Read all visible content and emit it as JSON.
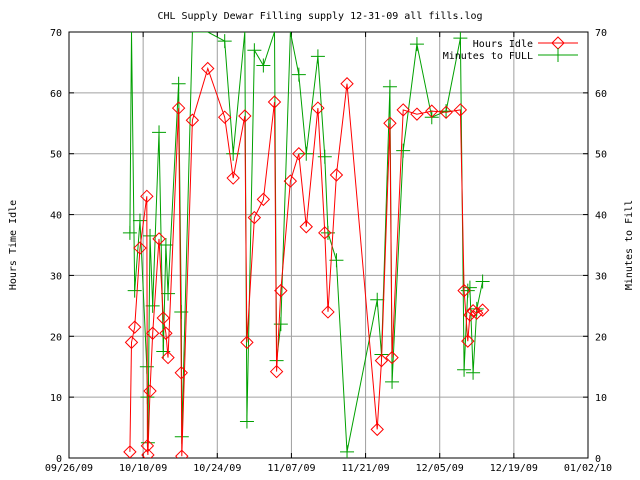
{
  "chart_data": {
    "type": "line",
    "title": "CHL Supply Dewar Filling supply 12-31-09 all fills.log",
    "ylabel_left": "Hours Time Idle",
    "ylabel_right": "Minutes to Fill",
    "x_ticks": [
      "09/26/09",
      "10/10/09",
      "10/24/09",
      "11/07/09",
      "11/21/09",
      "12/05/09",
      "12/19/09",
      "01/02/10"
    ],
    "y_ticks": [
      "0",
      "10",
      "20",
      "30",
      "40",
      "50",
      "60",
      "70"
    ],
    "ylim": [
      0,
      70
    ],
    "x_range_days": [
      0,
      98
    ],
    "grid": true,
    "legend_position": "top-right",
    "colors": {
      "hours": "#ff0000",
      "minutes": "#00a000",
      "grid": "#a0a0a0",
      "axis": "#000000"
    },
    "series": [
      {
        "name": "Hours Idle",
        "marker": "diamond",
        "points": [
          {
            "x": 11.5,
            "y": 1
          },
          {
            "x": 11.8,
            "y": 19
          },
          {
            "x": 12.4,
            "y": 21.5
          },
          {
            "x": 13.4,
            "y": 34.5
          },
          {
            "x": 14.7,
            "y": 43
          },
          {
            "x": 14.8,
            "y": 2
          },
          {
            "x": 14.9,
            "y": 0.5
          },
          {
            "x": 15.3,
            "y": 11
          },
          {
            "x": 15.8,
            "y": 20.5
          },
          {
            "x": 17.0,
            "y": 36
          },
          {
            "x": 17.8,
            "y": 23
          },
          {
            "x": 18.3,
            "y": 20.5
          },
          {
            "x": 18.7,
            "y": 16.5
          },
          {
            "x": 20.7,
            "y": 57.5
          },
          {
            "x": 21.2,
            "y": 14
          },
          {
            "x": 21.3,
            "y": 0.3
          },
          {
            "x": 23.3,
            "y": 55.5
          },
          {
            "x": 26.2,
            "y": 64
          },
          {
            "x": 29.4,
            "y": 56
          },
          {
            "x": 31.0,
            "y": 46
          },
          {
            "x": 33.2,
            "y": 56.2
          },
          {
            "x": 33.6,
            "y": 19
          },
          {
            "x": 35.0,
            "y": 39.5
          },
          {
            "x": 36.7,
            "y": 42.5
          },
          {
            "x": 38.8,
            "y": 58.5
          },
          {
            "x": 39.2,
            "y": 14.2
          },
          {
            "x": 40.0,
            "y": 27.5
          },
          {
            "x": 41.8,
            "y": 45.5
          },
          {
            "x": 43.4,
            "y": 50
          },
          {
            "x": 44.8,
            "y": 38
          },
          {
            "x": 47.0,
            "y": 57.5
          },
          {
            "x": 48.3,
            "y": 37
          },
          {
            "x": 48.9,
            "y": 24
          },
          {
            "x": 50.5,
            "y": 46.5
          },
          {
            "x": 52.5,
            "y": 61.5
          },
          {
            "x": 58.2,
            "y": 4.7
          },
          {
            "x": 59.0,
            "y": 16
          },
          {
            "x": 60.6,
            "y": 55
          },
          {
            "x": 61.0,
            "y": 16.5
          },
          {
            "x": 63.1,
            "y": 57.2
          },
          {
            "x": 65.7,
            "y": 56.5
          },
          {
            "x": 68.5,
            "y": 57
          },
          {
            "x": 71.2,
            "y": 56.8
          },
          {
            "x": 73.9,
            "y": 57.2
          },
          {
            "x": 74.6,
            "y": 27.5
          },
          {
            "x": 75.3,
            "y": 19.2
          },
          {
            "x": 75.7,
            "y": 23.5
          },
          {
            "x": 76.3,
            "y": 24.2
          },
          {
            "x": 77.0,
            "y": 23.8
          },
          {
            "x": 78.1,
            "y": 24.3
          }
        ]
      },
      {
        "name": "Minutes to FULL",
        "marker": "plus",
        "points": [
          {
            "x": 11.5,
            "y": 37
          },
          {
            "x": 11.8,
            "y": 70
          },
          {
            "x": 12.4,
            "y": 27.5
          },
          {
            "x": 13.4,
            "y": 39
          },
          {
            "x": 14.7,
            "y": 15
          },
          {
            "x": 14.8,
            "y": 10
          },
          {
            "x": 14.9,
            "y": 2.5
          },
          {
            "x": 15.3,
            "y": 36.5
          },
          {
            "x": 15.8,
            "y": 25
          },
          {
            "x": 17.0,
            "y": 53.5
          },
          {
            "x": 17.8,
            "y": 17.5
          },
          {
            "x": 18.3,
            "y": 35
          },
          {
            "x": 18.7,
            "y": 27
          },
          {
            "x": 20.7,
            "y": 61.5
          },
          {
            "x": 21.2,
            "y": 24
          },
          {
            "x": 21.3,
            "y": 3.5
          },
          {
            "x": 23.3,
            "y": 70
          },
          {
            "x": 26.2,
            "y": 70
          },
          {
            "x": 29.4,
            "y": 68.5
          },
          {
            "x": 31.0,
            "y": 50
          },
          {
            "x": 33.2,
            "y": 70
          },
          {
            "x": 33.6,
            "y": 6
          },
          {
            "x": 35.0,
            "y": 67
          },
          {
            "x": 36.7,
            "y": 64.5
          },
          {
            "x": 38.8,
            "y": 70
          },
          {
            "x": 39.2,
            "y": 16
          },
          {
            "x": 40.0,
            "y": 22
          },
          {
            "x": 41.8,
            "y": 70
          },
          {
            "x": 43.4,
            "y": 63
          },
          {
            "x": 44.8,
            "y": 50
          },
          {
            "x": 47.0,
            "y": 66
          },
          {
            "x": 48.3,
            "y": 49.5
          },
          {
            "x": 48.9,
            "y": 37
          },
          {
            "x": 50.5,
            "y": 32.5
          },
          {
            "x": 52.5,
            "y": 1
          },
          {
            "x": 58.2,
            "y": 26
          },
          {
            "x": 59.0,
            "y": 17
          },
          {
            "x": 60.6,
            "y": 61
          },
          {
            "x": 61.0,
            "y": 12.5
          },
          {
            "x": 63.1,
            "y": 50.5
          },
          {
            "x": 65.7,
            "y": 68
          },
          {
            "x": 68.5,
            "y": 56
          },
          {
            "x": 71.2,
            "y": 57
          },
          {
            "x": 73.9,
            "y": 69
          },
          {
            "x": 74.6,
            "y": 14.5
          },
          {
            "x": 75.3,
            "y": 27.5
          },
          {
            "x": 75.7,
            "y": 28
          },
          {
            "x": 76.3,
            "y": 14
          },
          {
            "x": 77.0,
            "y": 24.5
          },
          {
            "x": 78.1,
            "y": 29
          }
        ]
      }
    ]
  }
}
